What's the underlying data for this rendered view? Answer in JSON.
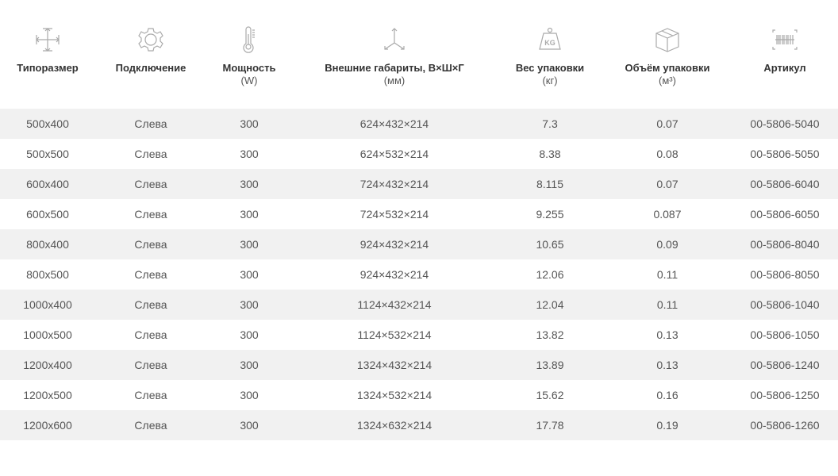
{
  "columns": [
    {
      "label": "Типоразмер",
      "sub": "",
      "icon": "resize-arrows-icon"
    },
    {
      "label": "Подключение",
      "sub": "",
      "icon": "gear-icon"
    },
    {
      "label": "Мощность",
      "sub": "(W)",
      "icon": "thermometer-icon"
    },
    {
      "label": "Внешние габариты, В×Ш×Г",
      "sub": "(мм)",
      "icon": "3d-axes-icon"
    },
    {
      "label": "Вес упаковки",
      "sub": "(кг)",
      "icon": "weight-kg-icon"
    },
    {
      "label": "Объём упаковки",
      "sub": "(м³)",
      "icon": "box-icon"
    },
    {
      "label": "Артикул",
      "sub": "",
      "icon": "barcode-icon"
    }
  ],
  "rows": [
    [
      "500x400",
      "Слева",
      "300",
      "624×432×214",
      "7.3",
      "0.07",
      "00-5806-5040"
    ],
    [
      "500x500",
      "Слева",
      "300",
      "624×532×214",
      "8.38",
      "0.08",
      "00-5806-5050"
    ],
    [
      "600x400",
      "Слева",
      "300",
      "724×432×214",
      "8.115",
      "0.07",
      "00-5806-6040"
    ],
    [
      "600x500",
      "Слева",
      "300",
      "724×532×214",
      "9.255",
      "0.087",
      "00-5806-6050"
    ],
    [
      "800x400",
      "Слева",
      "300",
      "924×432×214",
      "10.65",
      "0.09",
      "00-5806-8040"
    ],
    [
      "800x500",
      "Слева",
      "300",
      "924×432×214",
      "12.06",
      "0.11",
      "00-5806-8050"
    ],
    [
      "1000x400",
      "Слева",
      "300",
      "1124×432×214",
      "12.04",
      "0.11",
      "00-5806-1040"
    ],
    [
      "1000x500",
      "Слева",
      "300",
      "1124×532×214",
      "13.82",
      "0.13",
      "00-5806-1050"
    ],
    [
      "1200x400",
      "Слева",
      "300",
      "1324×432×214",
      "13.89",
      "0.13",
      "00-5806-1240"
    ],
    [
      "1200x500",
      "Слева",
      "300",
      "1324×532×214",
      "15.62",
      "0.16",
      "00-5806-1250"
    ],
    [
      "1200x600",
      "Слева",
      "300",
      "1324×632×214",
      "17.78",
      "0.19",
      "00-5806-1260"
    ]
  ]
}
